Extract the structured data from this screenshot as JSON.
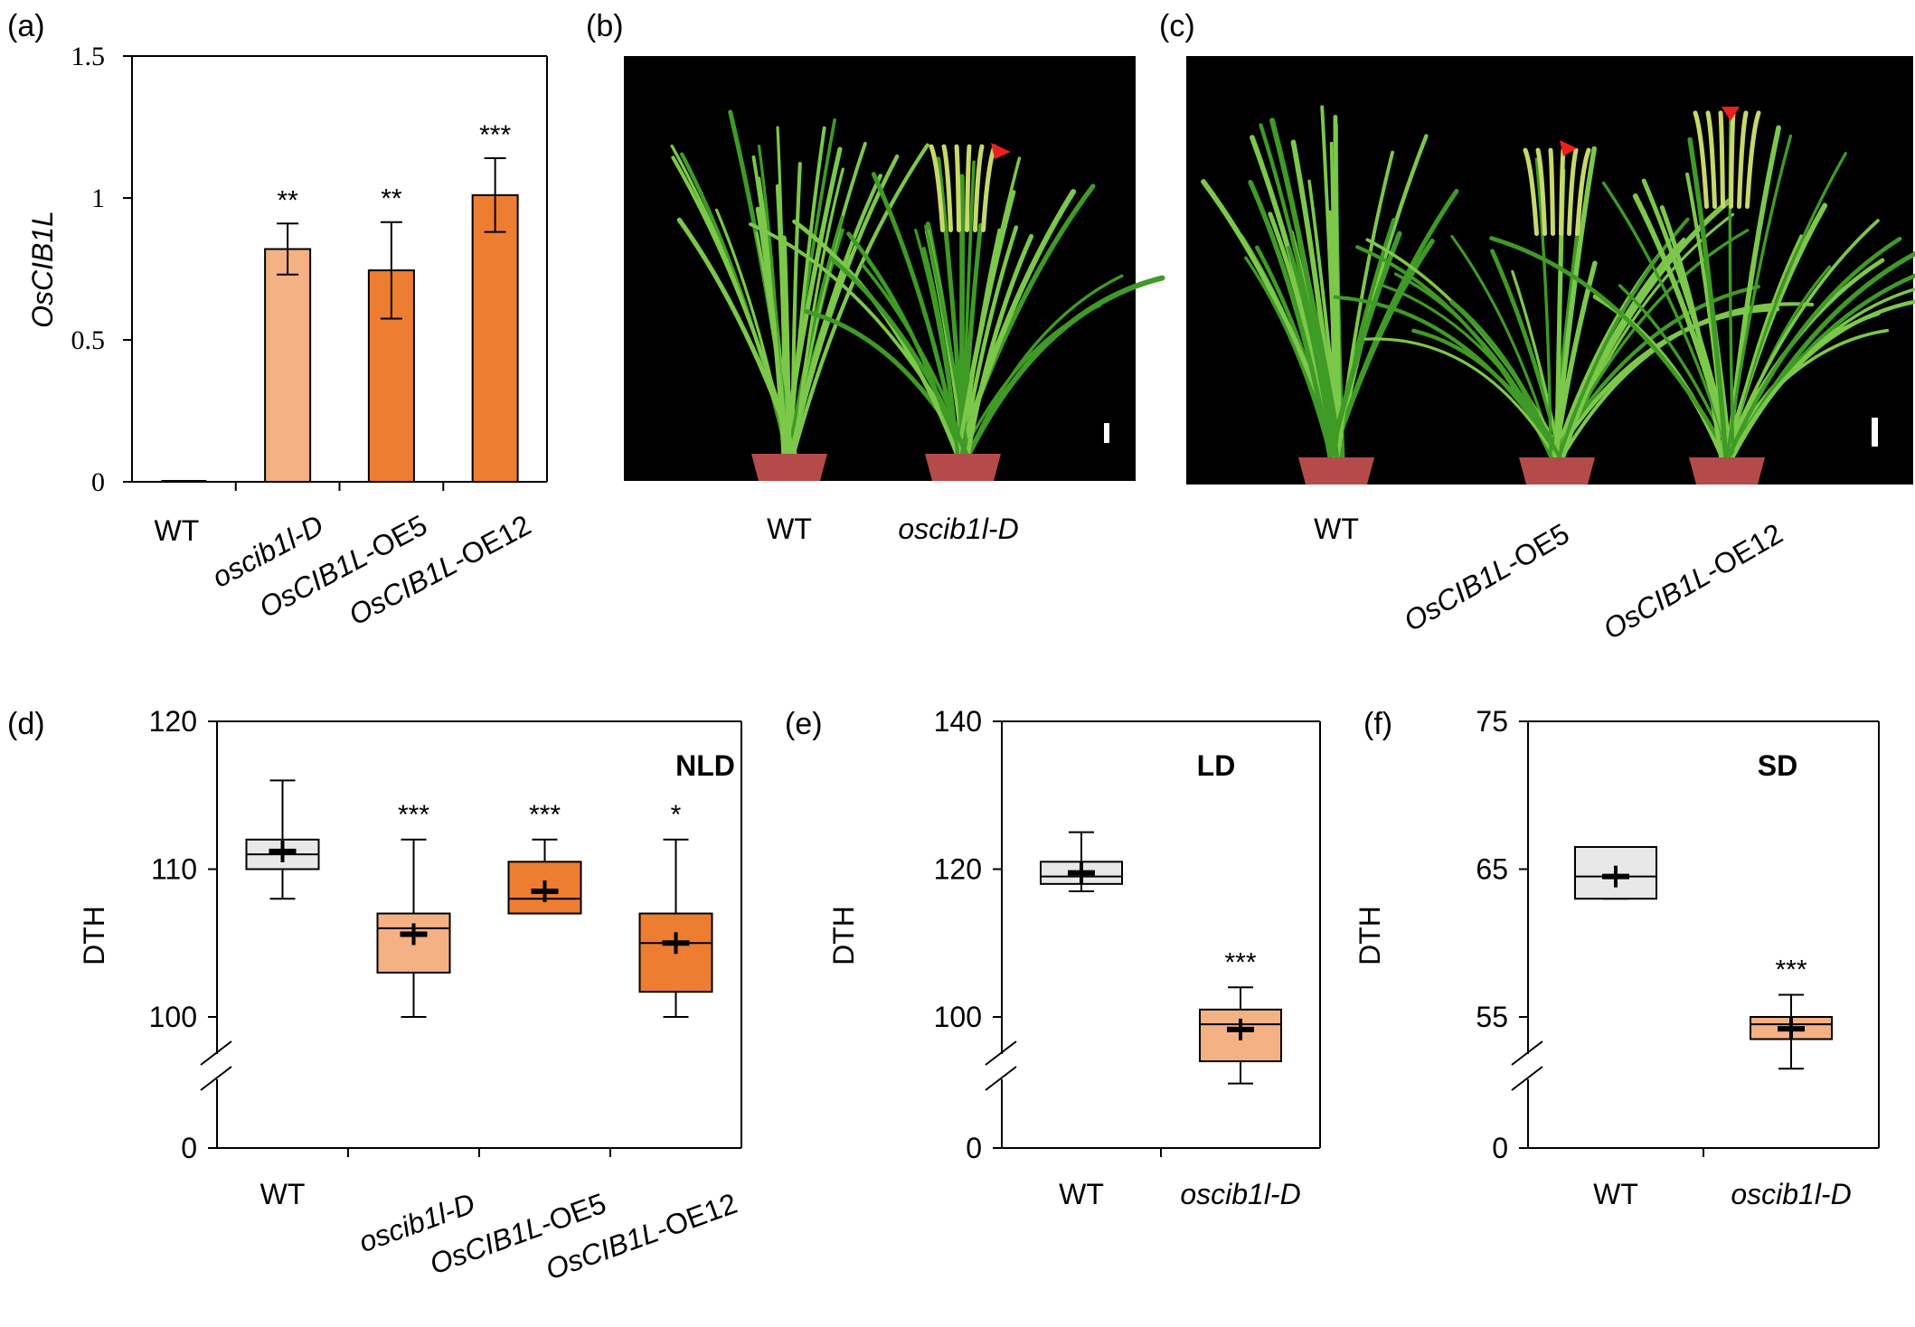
{
  "colors": {
    "wt": "#e8e8e8",
    "mutant": "#f4b183",
    "oe": "#ed7d31",
    "photo_bg": "#000000",
    "leaf_light": "#7cc84a",
    "leaf_dark": "#3f9a26",
    "panicle": "#c9d86a",
    "pot": "#b54a4a",
    "arrowhead": "#e8201e",
    "scale_bar": "#ffffff"
  },
  "chart_data": [
    {
      "panel": "(a)",
      "type": "bar",
      "ylabel": "OsCIB1L",
      "ylim": [
        0,
        1.5
      ],
      "yticks": [
        "0",
        "0.5",
        "1",
        "1.5"
      ],
      "categories": [
        "WT",
        "oscib1l-D",
        "OsCIB1L-OE5",
        "OsCIB1L-OE12"
      ],
      "values": [
        0.0,
        0.82,
        0.745,
        1.01
      ],
      "error": [
        0.0,
        0.09,
        0.17,
        0.13
      ],
      "significance": [
        "",
        "**",
        "**",
        "***"
      ],
      "fill": [
        "wt",
        "mutant",
        "oe",
        "oe"
      ]
    },
    {
      "panel": "(d)",
      "type": "box",
      "ylabel": "DTH",
      "annotation": "NLD",
      "ylim": [
        0,
        120
      ],
      "yticks": [
        "0",
        "100",
        "110",
        "120"
      ],
      "axis_break": true,
      "categories": [
        "WT",
        "oscib1l-D",
        "OsCIB1L-OE5",
        "OsCIB1L-OE12"
      ],
      "boxes": [
        {
          "min": 108,
          "q1": 110,
          "median": 111,
          "q3": 112,
          "max": 116,
          "mean": 111.2
        },
        {
          "min": 100,
          "q1": 103,
          "median": 106,
          "q3": 107,
          "max": 112,
          "mean": 105.6
        },
        {
          "min": 107,
          "q1": 107,
          "median": 108,
          "q3": 110.5,
          "max": 112,
          "mean": 108.5
        },
        {
          "min": 100,
          "q1": 101.7,
          "median": 105,
          "q3": 107,
          "max": 112,
          "mean": 105
        }
      ],
      "significance": [
        "",
        "***",
        "***",
        "*"
      ],
      "fill": [
        "wt",
        "mutant",
        "oe",
        "oe"
      ]
    },
    {
      "panel": "(e)",
      "type": "box",
      "ylabel": "DTH",
      "annotation": "LD",
      "ylim": [
        0,
        140
      ],
      "yticks": [
        "0",
        "100",
        "120",
        "140"
      ],
      "axis_break": true,
      "categories": [
        "WT",
        "oscib1l-D"
      ],
      "boxes": [
        {
          "min": 117,
          "q1": 118,
          "median": 119,
          "q3": 121,
          "max": 125,
          "mean": 119.5
        },
        {
          "min": 91,
          "q1": 94,
          "median": 99,
          "q3": 101,
          "max": 104,
          "mean": 98.3
        }
      ],
      "significance": [
        "",
        "***"
      ],
      "fill": [
        "wt",
        "mutant"
      ]
    },
    {
      "panel": "(f)",
      "type": "box",
      "ylabel": "DTH",
      "annotation": "SD",
      "ylim": [
        0,
        75
      ],
      "yticks": [
        "0",
        "55",
        "65",
        "75"
      ],
      "axis_break": true,
      "categories": [
        "WT",
        "oscib1l-D"
      ],
      "boxes": [
        {
          "min": 63,
          "q1": 63,
          "median": 64.5,
          "q3": 66.5,
          "max": 66.5,
          "mean": 64.5
        },
        {
          "min": 51.5,
          "q1": 53.5,
          "median": 54.5,
          "q3": 55,
          "max": 56.5,
          "mean": 54.2
        }
      ],
      "significance": [
        "",
        "***"
      ],
      "fill": [
        "wt",
        "mutant"
      ]
    }
  ],
  "photos": [
    {
      "panel": "(b)",
      "labels": [
        "WT",
        "oscib1l-D"
      ]
    },
    {
      "panel": "(c)",
      "labels": [
        "WT",
        "OsCIB1L-OE5",
        "OsCIB1L-OE12"
      ]
    }
  ]
}
